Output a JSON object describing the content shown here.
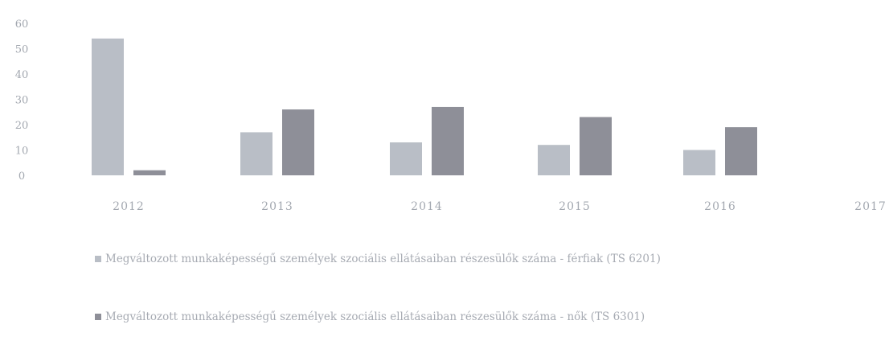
{
  "chart_data": {
    "type": "bar",
    "title": "",
    "xlabel": "",
    "ylabel": "",
    "categories": [
      "2012",
      "2013",
      "2014",
      "2015",
      "2016",
      "2017"
    ],
    "series": [
      {
        "name": "Megváltozott munkaképességű személyek szociális ellátásaiban részesülők száma - férfiak (TS 6201)",
        "values": [
          54,
          17,
          13,
          12,
          10,
          null
        ],
        "color": "#b9bec6"
      },
      {
        "name": "Megváltozott munkaképességű személyek szociális ellátásaiban részesülők száma - nők (TS 6301)",
        "values": [
          2,
          26,
          27,
          23,
          19,
          null
        ],
        "color": "#8e8f98"
      }
    ],
    "ylim": [
      0,
      60
    ],
    "yticks": [
      "0",
      "10",
      "20",
      "30",
      "40",
      "50",
      "60"
    ],
    "grid": false,
    "legend_position": "bottom"
  }
}
